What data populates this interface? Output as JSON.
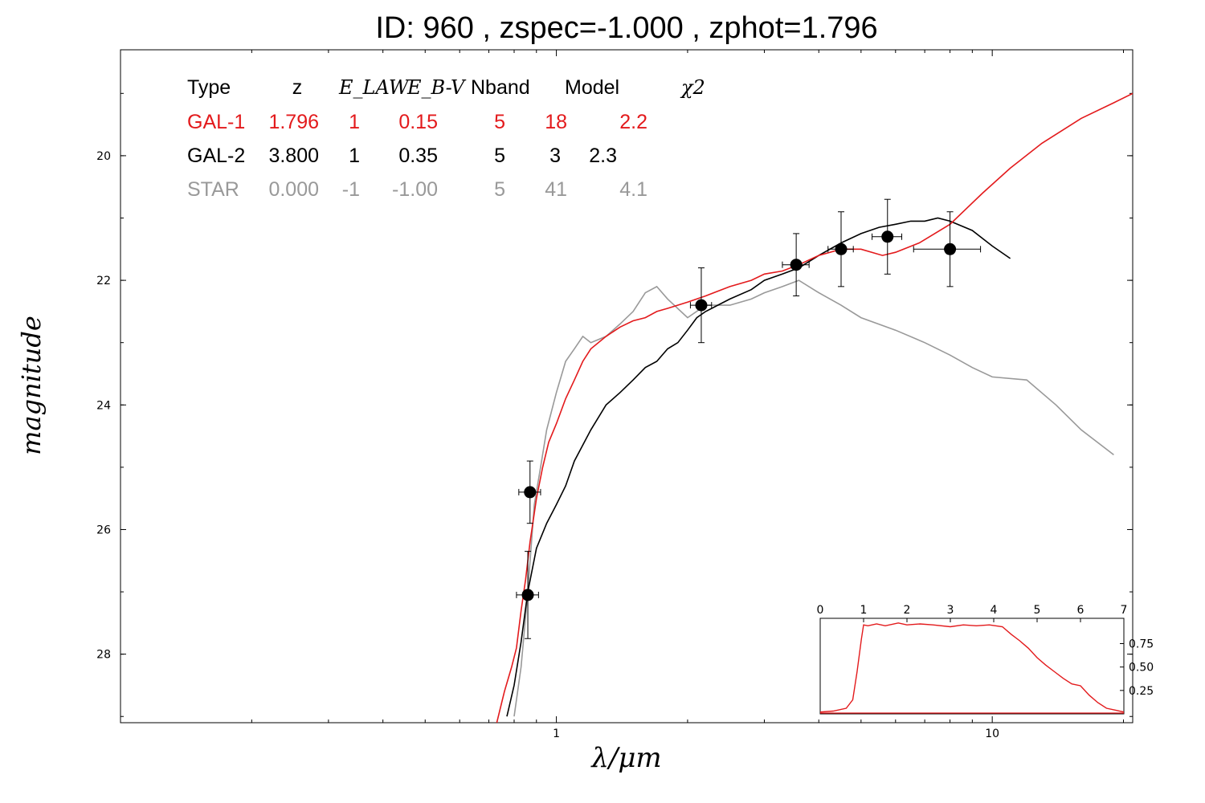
{
  "title": "ID:  960   , zspec=-1.000 , zphot=1.796",
  "chart_data": {
    "type": "line",
    "title": "ID:  960   , zspec=-1.000 , zphot=1.796",
    "xlabel": "λ/μm",
    "ylabel": "magnitude",
    "x_scale": "log",
    "xlim": [
      0.1,
      21
    ],
    "ylim": [
      29.1,
      18.3
    ],
    "x_ticks": [
      "1",
      "10"
    ],
    "y_ticks": [
      "20",
      "22",
      "24",
      "26",
      "28"
    ],
    "table": {
      "headers": [
        "Type",
        "z",
        "E_LAW",
        "E_B-V",
        "Nband",
        "Model",
        "χ2"
      ],
      "rows": [
        {
          "name": "GAL-1",
          "color": "#e31a1c",
          "cells": [
            "GAL-1",
            "1.796",
            "1",
            "0.15",
            "5",
            "18",
            "2.2"
          ]
        },
        {
          "name": "GAL-2",
          "color": "#000000",
          "cells": [
            "GAL-2",
            "3.800",
            "1",
            "0.35",
            "5",
            "3",
            "2.3"
          ]
        },
        {
          "name": "STAR",
          "color": "#999999",
          "cells": [
            "STAR",
            "0.000",
            "-1",
            "-1.00",
            "5",
            "41",
            "4.1"
          ]
        }
      ]
    },
    "photometry": [
      {
        "x": 0.87,
        "y": 25.4,
        "xerr": 0.05,
        "yerr": 0.5
      },
      {
        "x": 0.86,
        "y": 27.05,
        "xerr": 0.05,
        "yerr": 0.7
      },
      {
        "x": 2.15,
        "y": 22.4,
        "xerr": 0.12,
        "yerr": 0.6
      },
      {
        "x": 3.55,
        "y": 21.75,
        "xerr": 0.25,
        "yerr": 0.5
      },
      {
        "x": 4.5,
        "y": 21.5,
        "xerr": 0.3,
        "yerr": 0.6
      },
      {
        "x": 5.75,
        "y": 21.3,
        "xerr": 0.45,
        "yerr": 0.6
      },
      {
        "x": 8.0,
        "y": 21.5,
        "xerr": 1.4,
        "yerr": 0.6
      }
    ],
    "series": [
      {
        "name": "GAL-1",
        "color": "#e31a1c",
        "x": [
          0.73,
          0.76,
          0.79,
          0.81,
          0.83,
          0.85,
          0.87,
          0.9,
          0.93,
          0.96,
          1.0,
          1.05,
          1.1,
          1.15,
          1.2,
          1.3,
          1.4,
          1.5,
          1.6,
          1.7,
          1.8,
          2.0,
          2.2,
          2.5,
          2.8,
          3.0,
          3.3,
          3.6,
          4.0,
          4.5,
          5.0,
          5.6,
          6.0,
          6.8,
          8.0,
          9.5,
          11,
          13,
          16,
          19,
          21
        ],
        "y": [
          29.1,
          28.6,
          28.2,
          27.9,
          27.3,
          26.8,
          26.2,
          25.5,
          25.0,
          24.6,
          24.3,
          23.9,
          23.6,
          23.3,
          23.1,
          22.9,
          22.75,
          22.65,
          22.6,
          22.5,
          22.45,
          22.35,
          22.25,
          22.1,
          22.0,
          21.9,
          21.85,
          21.75,
          21.6,
          21.5,
          21.5,
          21.6,
          21.55,
          21.4,
          21.1,
          20.6,
          20.2,
          19.8,
          19.4,
          19.15,
          19.0
        ]
      },
      {
        "name": "GAL-2",
        "color": "#000000",
        "x": [
          0.77,
          0.8,
          0.83,
          0.86,
          0.9,
          0.95,
          1.0,
          1.05,
          1.1,
          1.2,
          1.3,
          1.4,
          1.5,
          1.6,
          1.7,
          1.8,
          1.9,
          2.0,
          2.1,
          2.2,
          2.5,
          2.8,
          3.0,
          3.3,
          3.6,
          4.0,
          4.5,
          5.0,
          5.5,
          6.0,
          6.5,
          7.0,
          7.5,
          8.0,
          9.0,
          10.0,
          11.0
        ],
        "y": [
          29.0,
          28.5,
          27.8,
          27.0,
          26.3,
          25.9,
          25.6,
          25.3,
          24.9,
          24.4,
          24.0,
          23.8,
          23.6,
          23.4,
          23.3,
          23.1,
          23.0,
          22.8,
          22.6,
          22.5,
          22.3,
          22.15,
          22.0,
          21.9,
          21.8,
          21.6,
          21.4,
          21.25,
          21.15,
          21.1,
          21.05,
          21.05,
          21.0,
          21.05,
          21.2,
          21.45,
          21.65
        ]
      },
      {
        "name": "STAR",
        "color": "#999999",
        "x": [
          0.8,
          0.83,
          0.86,
          0.89,
          0.92,
          0.95,
          1.0,
          1.05,
          1.1,
          1.15,
          1.2,
          1.3,
          1.4,
          1.5,
          1.6,
          1.7,
          1.8,
          2.0,
          2.2,
          2.5,
          2.8,
          3.0,
          3.3,
          3.6,
          4.0,
          4.5,
          5.0,
          6.0,
          7.0,
          8.0,
          9.0,
          10.0,
          12.0,
          14.0,
          16.0,
          19.0
        ],
        "y": [
          29.0,
          28.2,
          27.0,
          25.6,
          25.0,
          24.4,
          23.8,
          23.3,
          23.1,
          22.9,
          23.0,
          22.9,
          22.7,
          22.5,
          22.2,
          22.1,
          22.3,
          22.6,
          22.4,
          22.4,
          22.3,
          22.2,
          22.1,
          22.0,
          22.2,
          22.4,
          22.6,
          22.8,
          23.0,
          23.2,
          23.4,
          23.55,
          23.6,
          24.0,
          24.4,
          24.8
        ]
      }
    ],
    "inset": {
      "type": "line",
      "x_ticks": [
        "0",
        "1",
        "2",
        "3",
        "4",
        "5",
        "6",
        "7"
      ],
      "y_ticks": [
        "0.25",
        "0.50",
        "0.75"
      ],
      "xlim": [
        0,
        7
      ],
      "ylim": [
        0,
        1.02
      ],
      "color": "#e31a1c",
      "x": [
        0,
        0.3,
        0.6,
        0.75,
        0.85,
        0.95,
        1.0,
        1.1,
        1.3,
        1.5,
        1.8,
        2.0,
        2.3,
        2.6,
        3.0,
        3.3,
        3.6,
        3.9,
        4.2,
        4.4,
        4.6,
        4.8,
        5.0,
        5.2,
        5.4,
        5.6,
        5.8,
        6.0,
        6.2,
        6.4,
        6.6,
        6.8,
        7.0
      ],
      "y": [
        0.02,
        0.03,
        0.06,
        0.15,
        0.45,
        0.8,
        0.95,
        0.94,
        0.96,
        0.94,
        0.97,
        0.95,
        0.96,
        0.95,
        0.93,
        0.95,
        0.94,
        0.95,
        0.93,
        0.85,
        0.78,
        0.7,
        0.6,
        0.52,
        0.45,
        0.38,
        0.32,
        0.3,
        0.2,
        0.12,
        0.06,
        0.04,
        0.02
      ]
    }
  }
}
